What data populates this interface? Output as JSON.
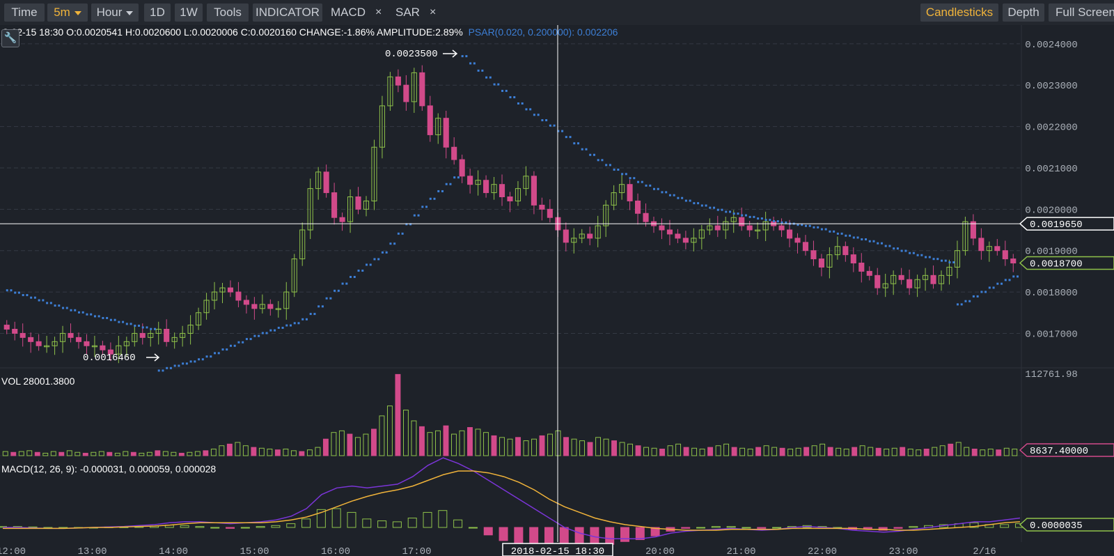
{
  "toolbar": {
    "time": "Time",
    "interval": "5m",
    "hour": "Hour",
    "d1": "1D",
    "w1": "1W",
    "tools": "Tools",
    "indicator": "INDICATOR",
    "macd": "MACD",
    "sar": "SAR",
    "close": "×",
    "candlesticks": "Candlesticks",
    "depth": "Depth",
    "fullscreen": "Full Screen"
  },
  "info": {
    "ohlc": "8-02-15 18:30    O:0.0020541  H:0.0020600  L:0.0020006  C:0.0020160  CHANGE:-1.86%  AMPLITUDE:2.89%",
    "psar": "PSAR(0.020, 0.200000): 0.002206",
    "vol": "VOL 28001.3800",
    "macd": "MACD(12, 26, 9): -0.000031, 0.000059, 0.000028"
  },
  "colors": {
    "up": "#8fc24a",
    "down": "#d24a8a",
    "psar": "#3d7fd6",
    "dif": "#7b35d8",
    "dea": "#f0b33a",
    "bg": "#1e2229"
  },
  "chart_data": {
    "type": "candlestick",
    "price_ticks": [
      "0.0024000",
      "0.0023000",
      "0.0022000",
      "0.0021000",
      "0.0020000",
      "0.0019000",
      "0.0018000",
      "0.0017000"
    ],
    "price_range": [
      0.00163,
      0.00243
    ],
    "time_ticks": [
      "12:00",
      "13:00",
      "14:00",
      "15:00",
      "16:00",
      "17:00",
      "18:00",
      "19:00",
      "20:00",
      "21:00",
      "22:00",
      "23:00",
      "2/16"
    ],
    "crosshair_time": "2018-02-15 18:30",
    "crosshair_price": "0.0019650",
    "last_price": "0.0018700",
    "max_label": "0.0023500",
    "min_label": "0.0016460",
    "vol_max": "112761.98",
    "vol_last": "8637.40000",
    "macd_last": "0.0000035",
    "close_path": [
      0.00171,
      0.0017,
      0.00169,
      0.00168,
      0.00167,
      0.00167,
      0.00168,
      0.0017,
      0.00169,
      0.00168,
      0.00167,
      0.00167,
      0.00166,
      0.00165,
      0.00167,
      0.00168,
      0.0017,
      0.00169,
      0.0017,
      0.00171,
      0.00168,
      0.00169,
      0.0017,
      0.00172,
      0.00175,
      0.00178,
      0.0018,
      0.00181,
      0.0018,
      0.00178,
      0.00177,
      0.00176,
      0.00177,
      0.00176,
      0.00176,
      0.0018,
      0.00188,
      0.00195,
      0.00205,
      0.00209,
      0.00204,
      0.00198,
      0.00197,
      0.00203,
      0.002,
      0.00202,
      0.00215,
      0.00225,
      0.00232,
      0.0023,
      0.00226,
      0.00233,
      0.00225,
      0.00218,
      0.00222,
      0.00215,
      0.00212,
      0.00208,
      0.00206,
      0.00207,
      0.00204,
      0.00206,
      0.00203,
      0.00202,
      0.00205,
      0.00208,
      0.00201,
      0.002,
      0.00198,
      0.00195,
      0.00192,
      0.00193,
      0.00194,
      0.00193,
      0.00196,
      0.00201,
      0.00204,
      0.00206,
      0.00202,
      0.00199,
      0.00197,
      0.00196,
      0.00195,
      0.00194,
      0.00193,
      0.00192,
      0.00193,
      0.00195,
      0.00196,
      0.00195,
      0.00197,
      0.00198,
      0.00196,
      0.00195,
      0.00195,
      0.00197,
      0.00196,
      0.00195,
      0.00193,
      0.00192,
      0.0019,
      0.00188,
      0.00186,
      0.00189,
      0.00191,
      0.00189,
      0.00187,
      0.00185,
      0.00184,
      0.00181,
      0.00182,
      0.00184,
      0.00183,
      0.00181,
      0.00183,
      0.00184,
      0.00182,
      0.00184,
      0.00186,
      0.0019,
      0.00197,
      0.00193,
      0.0019,
      0.00191,
      0.0019,
      0.00188,
      0.00187
    ],
    "volume_path": [
      5,
      4,
      5,
      6,
      4,
      3,
      5,
      4,
      6,
      4,
      3,
      4,
      5,
      4,
      3,
      5,
      4,
      3,
      4,
      6,
      5,
      4,
      3,
      4,
      5,
      6,
      8,
      12,
      14,
      16,
      12,
      10,
      9,
      8,
      7,
      8,
      6,
      5,
      7,
      10,
      20,
      28,
      30,
      26,
      22,
      26,
      32,
      48,
      60,
      98,
      55,
      42,
      35,
      28,
      30,
      36,
      26,
      30,
      34,
      32,
      28,
      24,
      22,
      20,
      22,
      18,
      20,
      24,
      26,
      30,
      22,
      20,
      18,
      16,
      22,
      20,
      18,
      16,
      14,
      12,
      10,
      9,
      8,
      12,
      14,
      10,
      9,
      8,
      10,
      12,
      14,
      10,
      9,
      8,
      10,
      12,
      10,
      9,
      8,
      9,
      10,
      12,
      14,
      10,
      9,
      8,
      10,
      12,
      10,
      9,
      8,
      9,
      10,
      8,
      7,
      8,
      10,
      12,
      14,
      16,
      10,
      8,
      7,
      8,
      7,
      9,
      8
    ],
    "dif_path": [
      0,
      0,
      -0.5,
      -1,
      -1,
      -0.5,
      0,
      0.5,
      1,
      2,
      3,
      5,
      6,
      6,
      5,
      4,
      5,
      6,
      8,
      12,
      20,
      35,
      42,
      44,
      42,
      44,
      46,
      54,
      66,
      74,
      68,
      60,
      50,
      40,
      30,
      20,
      10,
      0,
      -6,
      -10,
      -12,
      -12,
      -12,
      -10,
      -6,
      -4,
      -3,
      -2,
      -1,
      -2,
      -3,
      -2,
      0,
      1,
      0,
      -1,
      -3,
      -4,
      -5,
      -4,
      -2,
      0,
      2,
      4,
      6,
      6,
      8,
      10
    ],
    "dea_path": [
      -1,
      -1,
      -1,
      -1,
      -1,
      -0.5,
      0,
      0,
      0.5,
      1,
      1.5,
      2.5,
      4,
      5,
      5,
      5,
      5,
      5,
      6,
      8,
      11,
      16,
      22,
      28,
      33,
      37,
      40,
      44,
      50,
      56,
      60,
      60,
      58,
      54,
      48,
      40,
      30,
      22,
      16,
      10,
      6,
      3,
      1,
      -1,
      -2,
      -3,
      -3,
      -3,
      -2,
      -2,
      -2,
      -2,
      -1,
      -1,
      -1,
      -1,
      -1,
      -2,
      -2,
      -3,
      -3,
      -2,
      -1,
      0,
      1,
      3,
      5,
      6
    ]
  }
}
